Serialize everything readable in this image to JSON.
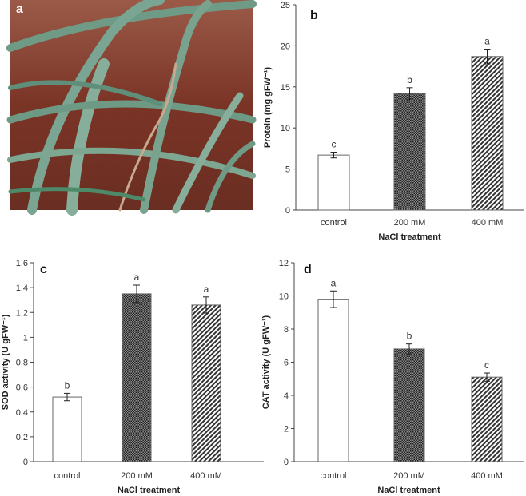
{
  "panels": {
    "a": "a"
  },
  "chart_data": [
    {
      "panel": "b",
      "type": "bar",
      "categories": [
        "control",
        "200 mM",
        "400 mM"
      ],
      "values": [
        6.7,
        14.2,
        18.7
      ],
      "errors": [
        0.35,
        0.7,
        0.9
      ],
      "significance": [
        "c",
        "b",
        "a"
      ],
      "xlabel": "NaCl treatment",
      "ylabel": "Protein (mg gFW⁻¹)",
      "ylim": [
        0,
        25
      ],
      "yticks": [
        "0",
        "5",
        "10",
        "15",
        "20",
        "25"
      ],
      "ystep": 5,
      "grid": false
    },
    {
      "panel": "c",
      "type": "bar",
      "categories": [
        "control",
        "200 mM",
        "400 mM"
      ],
      "values": [
        0.52,
        1.35,
        1.26
      ],
      "errors": [
        0.03,
        0.07,
        0.065
      ],
      "significance": [
        "b",
        "a",
        "a"
      ],
      "xlabel": "NaCl treatment",
      "ylabel": "SOD activity (U gFW⁻¹)",
      "ylim": [
        0,
        1.6
      ],
      "yticks": [
        "0",
        "0.2",
        "0.4",
        "0.6",
        "0.8",
        "1",
        "1.2",
        "1.4",
        "1.6"
      ],
      "ystep": 0.2,
      "grid": false
    },
    {
      "panel": "d",
      "type": "bar",
      "categories": [
        "control",
        "200 mM",
        "400 mM"
      ],
      "values": [
        9.8,
        6.8,
        5.1
      ],
      "errors": [
        0.5,
        0.3,
        0.25
      ],
      "significance": [
        "a",
        "b",
        "c"
      ],
      "xlabel": "NaCl treatment",
      "ylabel": "CAT activity (U gFW⁻¹)",
      "ylim": [
        0,
        12
      ],
      "yticks": [
        "0",
        "2",
        "4",
        "6",
        "8",
        "10",
        "12"
      ],
      "ystep": 2,
      "grid": false
    }
  ],
  "colors": {
    "photo_background": "#7a3a2c",
    "leaf": "#6f9a86",
    "bar_outline": "#555555"
  }
}
